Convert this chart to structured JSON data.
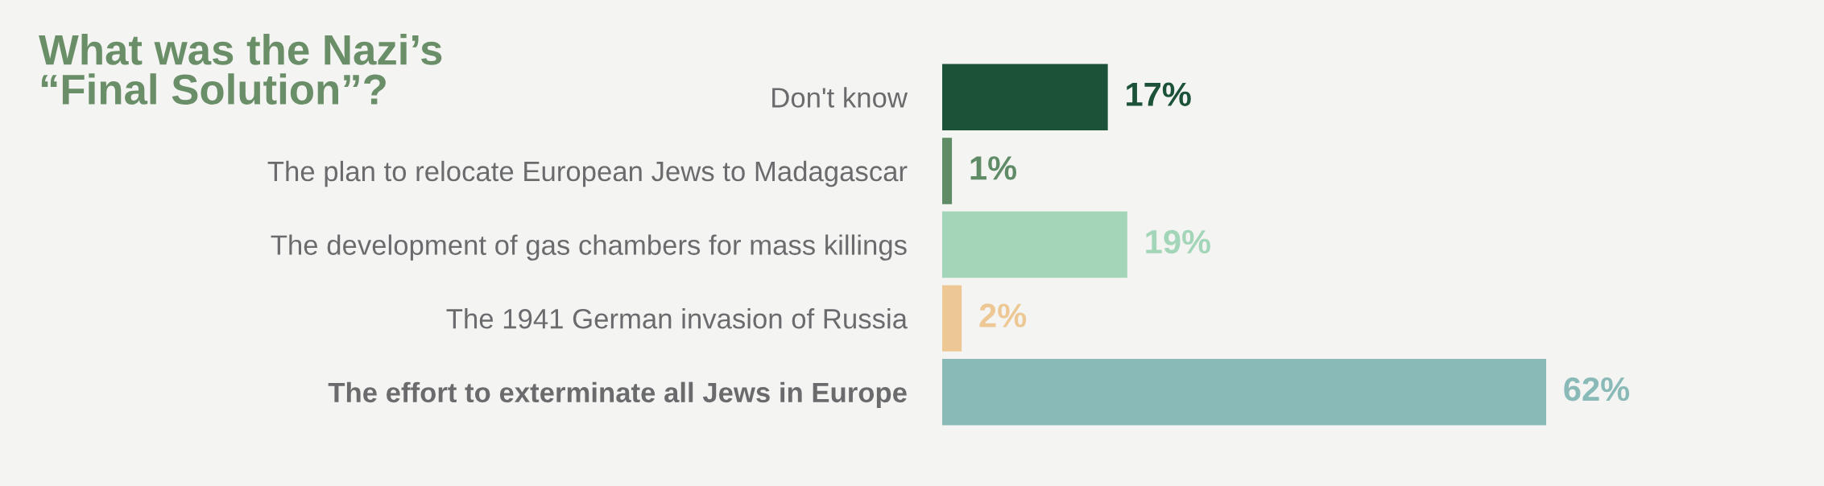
{
  "chart_data": {
    "type": "bar",
    "orientation": "horizontal",
    "title": "What was the Nazi’s\n“Final Solution”?",
    "categories": [
      "Don't know",
      "The plan to relocate European Jews to Madagascar",
      "The development of gas chambers for mass killings",
      "The 1941 German invasion of Russia",
      "The effort to exterminate all Jews in Europe"
    ],
    "values": [
      17,
      1,
      19,
      2,
      62
    ],
    "colors": [
      "#1c5238",
      "#5f8b67",
      "#a3d5b8",
      "#edc894",
      "#89bab7"
    ],
    "value_labels": [
      "17%",
      "1%",
      "19%",
      "2%",
      "62%"
    ],
    "tick_labels": "y"
  }
}
